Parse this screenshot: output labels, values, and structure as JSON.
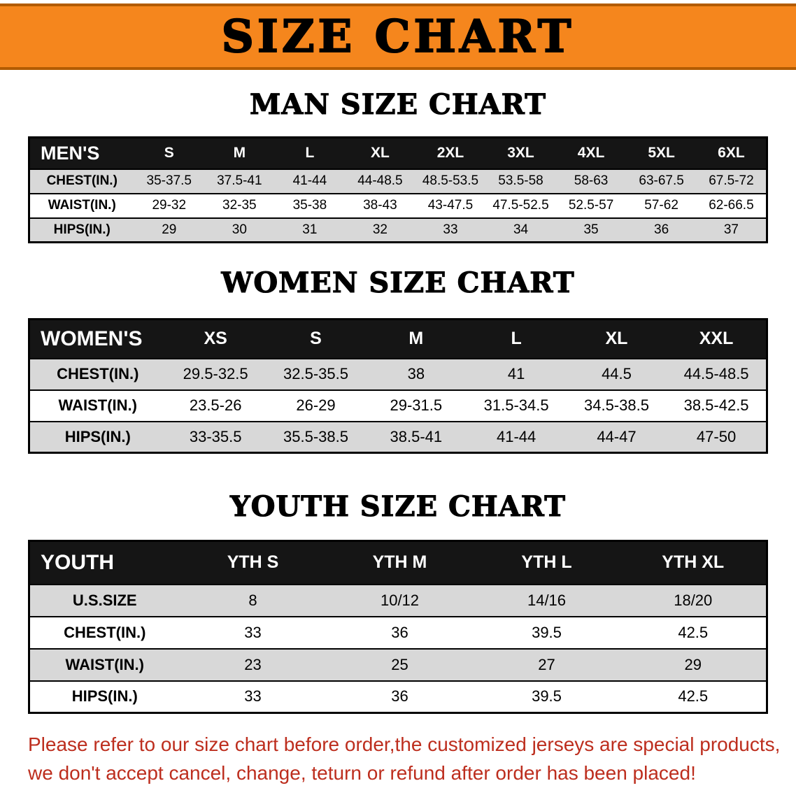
{
  "banner": {
    "title": "SIZE CHART"
  },
  "colors": {
    "banner_bg": "#f5861d",
    "banner_border": "#b25b00",
    "table_header_bg": "#151515",
    "row_stripe": "#d8d8d8",
    "notice_text": "#bd2e1e"
  },
  "sections": [
    {
      "heading": "MAN SIZE CHART",
      "table_name": "mens-size-table",
      "header": [
        "MEN'S",
        "S",
        "M",
        "L",
        "XL",
        "2XL",
        "3XL",
        "4XL",
        "5XL",
        "6XL"
      ],
      "rows": [
        [
          "CHEST(IN.)",
          "35-37.5",
          "37.5-41",
          "41-44",
          "44-48.5",
          "48.5-53.5",
          "53.5-58",
          "58-63",
          "63-67.5",
          "67.5-72"
        ],
        [
          "WAIST(IN.)",
          "29-32",
          "32-35",
          "35-38",
          "38-43",
          "43-47.5",
          "47.5-52.5",
          "52.5-57",
          "57-62",
          "62-66.5"
        ],
        [
          "HIPS(IN.)",
          "29",
          "30",
          "31",
          "32",
          "33",
          "34",
          "35",
          "36",
          "37"
        ]
      ]
    },
    {
      "heading": "WOMEN SIZE CHART",
      "table_name": "womens-size-table",
      "header": [
        "WOMEN'S",
        "XS",
        "S",
        "M",
        "L",
        "XL",
        "XXL"
      ],
      "rows": [
        [
          "CHEST(IN.)",
          "29.5-32.5",
          "32.5-35.5",
          "38",
          "41",
          "44.5",
          "44.5-48.5"
        ],
        [
          "WAIST(IN.)",
          "23.5-26",
          "26-29",
          "29-31.5",
          "31.5-34.5",
          "34.5-38.5",
          "38.5-42.5"
        ],
        [
          "HIPS(IN.)",
          "33-35.5",
          "35.5-38.5",
          "38.5-41",
          "41-44",
          "44-47",
          "47-50"
        ]
      ]
    },
    {
      "heading": "YOUTH SIZE CHART",
      "table_name": "youth-size-table",
      "header": [
        "YOUTH",
        "YTH S",
        "YTH M",
        "YTH L",
        "YTH XL"
      ],
      "rows": [
        [
          "U.S.SIZE",
          "8",
          "10/12",
          "14/16",
          "18/20"
        ],
        [
          "CHEST(IN.)",
          "33",
          "36",
          "39.5",
          "42.5"
        ],
        [
          "WAIST(IN.)",
          "23",
          "25",
          "27",
          "29"
        ],
        [
          "HIPS(IN.)",
          "33",
          "36",
          "39.5",
          "42.5"
        ]
      ]
    }
  ],
  "footer": {
    "line1": "Please refer to our size chart before order,the customized jerseys are special products,",
    "line2": "we don't accept cancel, change, teturn or refund after order has been placed!"
  }
}
